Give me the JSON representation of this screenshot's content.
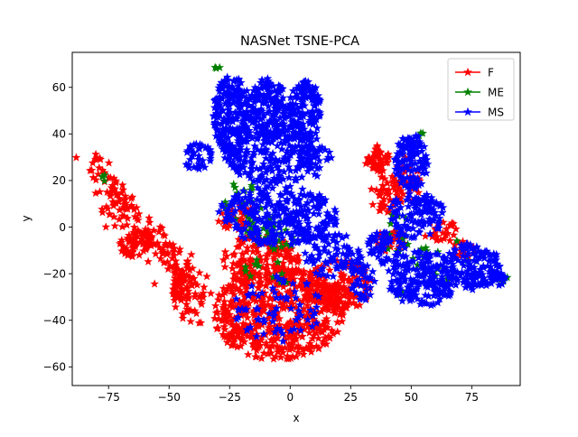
{
  "chart_data": {
    "type": "scatter",
    "title": "NASNet TSNE-PCA",
    "xlabel": "x",
    "ylabel": "y",
    "xlim": [
      -90,
      95
    ],
    "ylim": [
      -68,
      75
    ],
    "xticks": [
      -75,
      -50,
      -25,
      0,
      25,
      50,
      75
    ],
    "yticks": [
      -60,
      -40,
      -20,
      0,
      20,
      40,
      60
    ],
    "xtick_labels": [
      "−75",
      "−50",
      "−25",
      "0",
      "25",
      "50",
      "75"
    ],
    "ytick_labels": [
      "−60",
      "−40",
      "−20",
      "0",
      "20",
      "40",
      "60"
    ],
    "grid": false,
    "legend_position": "upper-right",
    "marker": "star",
    "series": [
      {
        "name": "F",
        "color": "#ff0000",
        "clusters": [
          {
            "shape": "polyline",
            "points": [
              [
                -80,
                29
              ],
              [
                -78,
                22
              ],
              [
                -74,
                15
              ],
              [
                -70,
                9
              ],
              [
                -65,
                3
              ],
              [
                -60,
                -2
              ],
              [
                -56,
                -6
              ],
              [
                -52,
                -10
              ],
              [
                -48,
                -14
              ],
              [
                -44,
                -18
              ],
              [
                -41,
                -22
              ],
              [
                -40,
                -30
              ],
              [
                -42,
                -37
              ]
            ],
            "spread": 3.2,
            "count": 230
          },
          {
            "shape": "ellipse",
            "cx": -65,
            "cy": -8,
            "rx": 6,
            "ry": 5,
            "count": 40
          },
          {
            "shape": "ellipse",
            "cx": -45,
            "cy": -26,
            "rx": 4,
            "ry": 6,
            "count": 30
          },
          {
            "shape": "ellipse",
            "cx": -5,
            "cy": -37,
            "rx": 27,
            "ry": 20,
            "count": 560
          },
          {
            "shape": "ellipse",
            "cx": -12,
            "cy": -15,
            "rx": 16,
            "ry": 12,
            "count": 140
          },
          {
            "shape": "ellipse",
            "cx": 20,
            "cy": -25,
            "rx": 14,
            "ry": 11,
            "count": 130
          },
          {
            "shape": "ellipse",
            "cx": -22,
            "cy": 4,
            "rx": 8,
            "ry": 6,
            "count": 40
          },
          {
            "shape": "ellipse",
            "cx": 36,
            "cy": 29,
            "rx": 5,
            "ry": 6,
            "count": 50
          },
          {
            "shape": "ellipse",
            "cx": 39,
            "cy": 14,
            "rx": 6,
            "ry": 8,
            "count": 40
          },
          {
            "shape": "ellipse",
            "cx": 42,
            "cy": -6,
            "rx": 7,
            "ry": 5,
            "count": 40
          },
          {
            "shape": "ellipse",
            "cx": 48,
            "cy": 20,
            "rx": 6,
            "ry": 10,
            "count": 40
          },
          {
            "shape": "ellipse",
            "cx": 72,
            "cy": -9,
            "rx": 5,
            "ry": 4,
            "count": 20
          },
          {
            "shape": "ellipse",
            "cx": 62,
            "cy": -2,
            "rx": 8,
            "ry": 5,
            "count": 25
          }
        ]
      },
      {
        "name": "ME",
        "color": "#008000",
        "clusters": [
          {
            "shape": "ellipse",
            "cx": -5,
            "cy": -2,
            "rx": 12,
            "ry": 8,
            "count": 40
          },
          {
            "shape": "ellipse",
            "cx": -20,
            "cy": 8,
            "rx": 8,
            "ry": 12,
            "count": 18
          },
          {
            "shape": "ellipse",
            "cx": -10,
            "cy": -22,
            "rx": 10,
            "ry": 10,
            "count": 12
          },
          {
            "shape": "ellipse",
            "cx": 44,
            "cy": -2,
            "rx": 6,
            "ry": 10,
            "count": 12
          },
          {
            "shape": "ellipse",
            "cx": 65,
            "cy": -15,
            "rx": 15,
            "ry": 10,
            "count": 15
          },
          {
            "shape": "ellipse",
            "cx": -30,
            "cy": 68,
            "rx": 1.5,
            "ry": 1,
            "count": 3
          },
          {
            "shape": "ellipse",
            "cx": -77,
            "cy": 21,
            "rx": 1.5,
            "ry": 1.5,
            "count": 3
          },
          {
            "shape": "ellipse",
            "cx": 54,
            "cy": 40,
            "rx": 1.5,
            "ry": 1,
            "count": 3
          },
          {
            "shape": "ellipse",
            "cx": 88,
            "cy": -22,
            "rx": 2,
            "ry": 1.5,
            "count": 4
          },
          {
            "shape": "ellipse",
            "cx": 45,
            "cy": -28,
            "rx": 2,
            "ry": 1.5,
            "count": 3
          }
        ]
      },
      {
        "name": "MS",
        "color": "#0000ff",
        "clusters": [
          {
            "shape": "ellipse",
            "cx": -24,
            "cy": 48,
            "rx": 8,
            "ry": 17,
            "count": 220
          },
          {
            "shape": "ellipse",
            "cx": -9,
            "cy": 50,
            "rx": 8,
            "ry": 14,
            "count": 170
          },
          {
            "shape": "ellipse",
            "cx": 6,
            "cy": 50,
            "rx": 7,
            "ry": 13,
            "count": 150
          },
          {
            "shape": "ellipse",
            "cx": -5,
            "cy": 30,
            "rx": 22,
            "ry": 12,
            "count": 240
          },
          {
            "shape": "ellipse",
            "cx": -38,
            "cy": 30,
            "rx": 6,
            "ry": 6,
            "count": 40
          },
          {
            "shape": "ellipse",
            "cx": -5,
            "cy": 5,
            "rx": 25,
            "ry": 13,
            "count": 300
          },
          {
            "shape": "ellipse",
            "cx": 17,
            "cy": -12,
            "rx": 12,
            "ry": 10,
            "count": 80
          },
          {
            "shape": "ellipse",
            "cx": -5,
            "cy": -35,
            "rx": 18,
            "ry": 15,
            "count": 70
          },
          {
            "shape": "ellipse",
            "cx": 30,
            "cy": -22,
            "rx": 5,
            "ry": 10,
            "count": 40
          },
          {
            "shape": "ellipse",
            "cx": 50,
            "cy": 28,
            "rx": 7,
            "ry": 12,
            "count": 120
          },
          {
            "shape": "ellipse",
            "cx": 52,
            "cy": 5,
            "rx": 12,
            "ry": 10,
            "count": 110
          },
          {
            "shape": "ellipse",
            "cx": 55,
            "cy": -22,
            "rx": 15,
            "ry": 12,
            "count": 190
          },
          {
            "shape": "ellipse",
            "cx": 75,
            "cy": -17,
            "rx": 12,
            "ry": 10,
            "count": 140
          },
          {
            "shape": "ellipse",
            "cx": 40,
            "cy": -8,
            "rx": 8,
            "ry": 8,
            "count": 60
          },
          {
            "shape": "ellipse",
            "cx": 86,
            "cy": -22,
            "rx": 3,
            "ry": 3,
            "count": 15
          }
        ]
      }
    ]
  }
}
